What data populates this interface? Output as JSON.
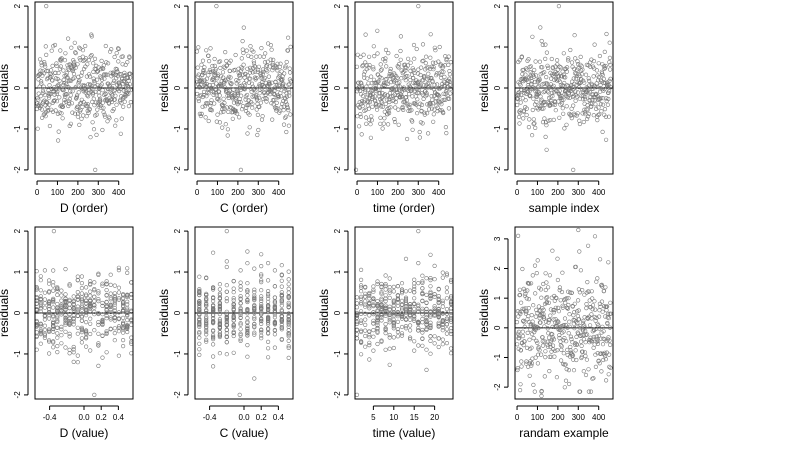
{
  "chart_data": [
    {
      "type": "scatter",
      "xlabel": "D (order)",
      "ylabel": "residuals",
      "xlim": [
        -10,
        470
      ],
      "ylim": [
        -2.1,
        2.1
      ],
      "xticks": [
        0,
        100,
        200,
        300,
        400
      ],
      "xtick_labels": [
        "0",
        "100",
        "200",
        "300",
        "400"
      ],
      "yticks": [
        -2,
        -1,
        0,
        1,
        2
      ],
      "ytick_labels": [
        "-2",
        "-1",
        "0",
        "1",
        "2"
      ],
      "hline": 0,
      "grid": false,
      "x_kind": "order",
      "n": 460,
      "seed": 11,
      "spread": 0.45,
      "outliers": [
        [
          45,
          2.0
        ],
        [
          285,
          -2.0
        ]
      ]
    },
    {
      "type": "scatter",
      "xlabel": "C (order)",
      "ylabel": "residuals",
      "xlim": [
        -10,
        470
      ],
      "ylim": [
        -2.1,
        2.1
      ],
      "xticks": [
        0,
        100,
        200,
        300,
        400
      ],
      "xtick_labels": [
        "0",
        "100",
        "200",
        "300",
        "400"
      ],
      "yticks": [
        -2,
        -1,
        0,
        1,
        2
      ],
      "ytick_labels": [
        "-2",
        "-1",
        "0",
        "1",
        "2"
      ],
      "hline": 0,
      "grid": false,
      "x_kind": "order",
      "n": 460,
      "seed": 23,
      "spread": 0.45,
      "outliers": [
        [
          95,
          2.0
        ],
        [
          215,
          -2.0
        ]
      ]
    },
    {
      "type": "scatter",
      "xlabel": "time (order)",
      "ylabel": "residuals",
      "xlim": [
        -10,
        470
      ],
      "ylim": [
        -2.1,
        2.1
      ],
      "xticks": [
        0,
        100,
        200,
        300,
        400
      ],
      "xtick_labels": [
        "0",
        "100",
        "200",
        "300",
        "400"
      ],
      "yticks": [
        -2,
        -1,
        0,
        1,
        2
      ],
      "ytick_labels": [
        "-2",
        "-1",
        "0",
        "1",
        "2"
      ],
      "hline": 0,
      "grid": false,
      "x_kind": "order",
      "n": 460,
      "seed": 37,
      "spread": 0.45,
      "outliers": [
        [
          -5,
          -2.0
        ],
        [
          300,
          2.0
        ]
      ]
    },
    {
      "type": "scatter",
      "xlabel": "sample index",
      "ylabel": "residuals",
      "xlim": [
        -10,
        470
      ],
      "ylim": [
        -2.1,
        2.1
      ],
      "xticks": [
        0,
        100,
        200,
        300,
        400
      ],
      "xtick_labels": [
        "0",
        "100",
        "200",
        "300",
        "400"
      ],
      "yticks": [
        -2,
        -1,
        0,
        1,
        2
      ],
      "ytick_labels": [
        "-2",
        "-1",
        "0",
        "1",
        "2"
      ],
      "hline": 0,
      "grid": false,
      "x_kind": "order",
      "n": 460,
      "seed": 41,
      "spread": 0.45,
      "outliers": [
        [
          205,
          2.0
        ],
        [
          275,
          -2.0
        ]
      ]
    },
    {
      "type": "scatter",
      "xlabel": "D (value)",
      "ylabel": "residuals",
      "xlim": [
        -0.57,
        0.57
      ],
      "ylim": [
        -2.1,
        2.1
      ],
      "xticks": [
        -0.4,
        0.0,
        0.2,
        0.4
      ],
      "xtick_labels": [
        "-0.4",
        "0.0",
        "0.2",
        "0.4"
      ],
      "yticks": [
        -2,
        -1,
        0,
        1,
        2
      ],
      "ytick_labels": [
        "-2",
        "-1",
        "0",
        "1",
        "2"
      ],
      "hline": 0,
      "grid": false,
      "x_kind": "discrete",
      "xmin": -0.55,
      "xmax": 0.55,
      "levels": 24,
      "n": 460,
      "seed": 53,
      "spread": 0.45,
      "outliers": [
        [
          -0.35,
          2.0
        ],
        [
          0.12,
          -2.0
        ]
      ]
    },
    {
      "type": "scatter",
      "xlabel": "C (value)",
      "ylabel": "residuals",
      "xlim": [
        -0.57,
        0.57
      ],
      "ylim": [
        -2.1,
        2.1
      ],
      "xticks": [
        -0.4,
        0.0,
        0.2,
        0.4
      ],
      "xtick_labels": [
        "-0.4",
        "0.0",
        "0.2",
        "0.4"
      ],
      "yticks": [
        -2,
        -1,
        0,
        1,
        2
      ],
      "ytick_labels": [
        "-2",
        "-1",
        "0",
        "1",
        "2"
      ],
      "hline": 0,
      "grid": false,
      "x_kind": "discrete",
      "xmin": -0.52,
      "xmax": 0.52,
      "levels": 14,
      "n": 460,
      "seed": 67,
      "spread": 0.45,
      "outliers": [
        [
          -0.2,
          2.0
        ],
        [
          -0.05,
          -2.0
        ]
      ]
    },
    {
      "type": "scatter",
      "xlabel": "time (value)",
      "ylabel": "residuals",
      "xlim": [
        0.5,
        24.5
      ],
      "ylim": [
        -2.1,
        2.1
      ],
      "xticks": [
        5,
        10,
        15,
        20
      ],
      "xtick_labels": [
        "5",
        "10",
        "15",
        "20"
      ],
      "yticks": [
        -2,
        -1,
        0,
        1,
        2
      ],
      "ytick_labels": [
        "-2",
        "-1",
        "0",
        "1",
        "2"
      ],
      "hline": 0,
      "grid": false,
      "x_kind": "discrete",
      "xmin": 1,
      "xmax": 24,
      "levels": 24,
      "n": 460,
      "seed": 79,
      "spread": 0.45,
      "outliers": [
        [
          1,
          -2.0
        ],
        [
          16,
          2.0
        ]
      ]
    },
    {
      "type": "scatter",
      "xlabel": "randam example",
      "ylabel": "residuals",
      "xlim": [
        -10,
        470
      ],
      "ylim": [
        -2.4,
        3.4
      ],
      "xticks": [
        0,
        100,
        200,
        300,
        400
      ],
      "xtick_labels": [
        "0",
        "100",
        "200",
        "300",
        "400"
      ],
      "yticks": [
        -2,
        -1,
        0,
        1,
        2,
        3
      ],
      "ytick_labels": [
        "-2",
        "-1",
        "0",
        "1",
        "2",
        "3"
      ],
      "hline": 0,
      "grid": false,
      "x_kind": "order",
      "n": 460,
      "seed": 97,
      "spread": 0.95,
      "outliers": [
        [
          5,
          3.1
        ],
        [
          300,
          3.3
        ],
        [
          15,
          -2.1
        ],
        [
          120,
          -2.3
        ]
      ]
    }
  ]
}
